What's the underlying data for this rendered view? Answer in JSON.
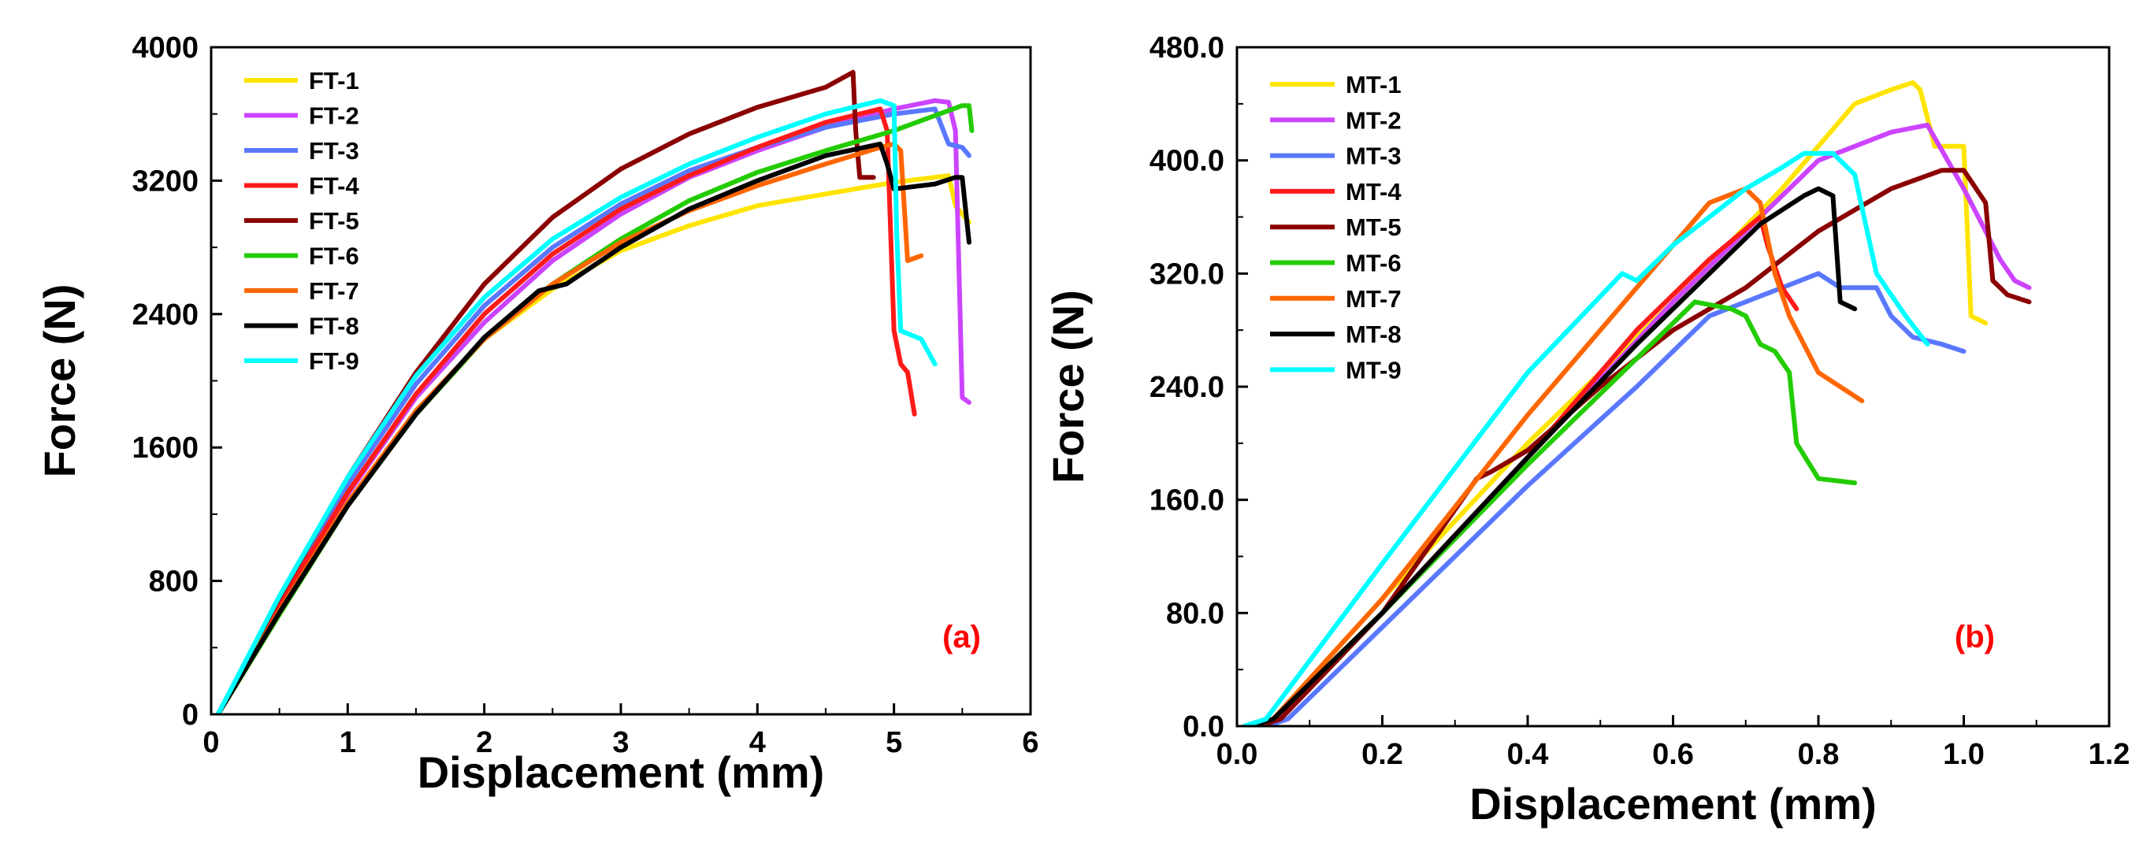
{
  "chart_data": [
    {
      "type": "line",
      "panel": "(a)",
      "panel_color": "#ff0000",
      "xlabel": "Displacement (mm)",
      "ylabel": "Force (N)",
      "xlim": [
        0,
        6
      ],
      "ylim": [
        0,
        4000
      ],
      "xticks": [
        "0",
        "1",
        "2",
        "3",
        "4",
        "5",
        "6"
      ],
      "yticks": [
        "0",
        "800",
        "1600",
        "2400",
        "3200",
        "4000"
      ],
      "legend_position": "top-left",
      "series": [
        {
          "name": "FT-1",
          "color": "#ffe400",
          "x": [
            0.05,
            0.5,
            1.0,
            1.5,
            2.0,
            2.5,
            3.0,
            3.5,
            4.0,
            4.5,
            5.0,
            5.4,
            5.45,
            5.55
          ],
          "y": [
            0,
            600,
            1250,
            1800,
            2250,
            2550,
            2780,
            2930,
            3050,
            3120,
            3190,
            3230,
            3050,
            2950
          ]
        },
        {
          "name": "FT-2",
          "color": "#cc44ff",
          "x": [
            0.05,
            0.5,
            1.0,
            1.5,
            2.0,
            2.5,
            3.0,
            3.5,
            4.0,
            4.5,
            5.0,
            5.3,
            5.4,
            5.45,
            5.5,
            5.55
          ],
          "y": [
            0,
            650,
            1320,
            1900,
            2350,
            2720,
            3000,
            3220,
            3380,
            3520,
            3630,
            3680,
            3670,
            3500,
            1900,
            1870
          ]
        },
        {
          "name": "FT-3",
          "color": "#5a78ff",
          "x": [
            0.05,
            0.5,
            1.0,
            1.5,
            2.0,
            2.5,
            3.0,
            3.5,
            4.0,
            4.5,
            5.0,
            5.3,
            5.4,
            5.5,
            5.55
          ],
          "y": [
            0,
            680,
            1380,
            1980,
            2450,
            2800,
            3060,
            3260,
            3400,
            3520,
            3600,
            3630,
            3420,
            3400,
            3350
          ]
        },
        {
          "name": "FT-4",
          "color": "#ff1a1a",
          "x": [
            0.05,
            0.5,
            1.0,
            1.5,
            2.0,
            2.5,
            3.0,
            3.5,
            4.0,
            4.5,
            4.9,
            4.95,
            5.0,
            5.05,
            5.1,
            5.15
          ],
          "y": [
            0,
            660,
            1330,
            1920,
            2400,
            2760,
            3030,
            3230,
            3400,
            3550,
            3630,
            3500,
            2300,
            2100,
            2050,
            1800
          ]
        },
        {
          "name": "FT-5",
          "color": "#8b0000",
          "x": [
            0.05,
            0.5,
            1.0,
            1.5,
            2.0,
            2.5,
            3.0,
            3.5,
            4.0,
            4.5,
            4.7,
            4.72,
            4.75,
            4.85
          ],
          "y": [
            0,
            700,
            1420,
            2050,
            2580,
            2980,
            3270,
            3480,
            3640,
            3760,
            3850,
            3500,
            3220,
            3220
          ]
        },
        {
          "name": "FT-6",
          "color": "#22cc00",
          "x": [
            0.05,
            0.5,
            1.0,
            1.5,
            2.0,
            2.5,
            3.0,
            3.5,
            4.0,
            4.5,
            5.0,
            5.5,
            5.55,
            5.57
          ],
          "y": [
            0,
            600,
            1250,
            1800,
            2250,
            2580,
            2850,
            3080,
            3250,
            3380,
            3500,
            3650,
            3650,
            3500
          ]
        },
        {
          "name": "FT-7",
          "color": "#ff6600",
          "x": [
            0.05,
            0.5,
            1.0,
            1.5,
            2.0,
            2.5,
            3.0,
            3.5,
            4.0,
            4.5,
            4.9,
            5.0,
            5.05,
            5.1,
            5.2
          ],
          "y": [
            0,
            620,
            1270,
            1820,
            2250,
            2580,
            2830,
            3020,
            3170,
            3300,
            3400,
            3420,
            3380,
            2720,
            2750
          ]
        },
        {
          "name": "FT-8",
          "color": "#000000",
          "x": [
            0.05,
            0.5,
            1.0,
            1.5,
            2.0,
            2.4,
            2.6,
            3.0,
            3.5,
            4.0,
            4.5,
            4.9,
            4.95,
            5.0,
            5.3,
            5.45,
            5.5,
            5.55
          ],
          "y": [
            0,
            610,
            1250,
            1800,
            2260,
            2540,
            2580,
            2800,
            3030,
            3200,
            3350,
            3420,
            3300,
            3150,
            3180,
            3220,
            3220,
            2830
          ]
        },
        {
          "name": "FT-9",
          "color": "#00ffff",
          "x": [
            0.05,
            0.5,
            1.0,
            1.5,
            2.0,
            2.5,
            3.0,
            3.5,
            4.0,
            4.5,
            4.9,
            5.0,
            5.02,
            5.05,
            5.2,
            5.3
          ],
          "y": [
            0,
            710,
            1420,
            2030,
            2500,
            2850,
            3100,
            3300,
            3460,
            3600,
            3680,
            3650,
            2900,
            2300,
            2250,
            2100
          ]
        }
      ]
    },
    {
      "type": "line",
      "panel": "(b)",
      "panel_color": "#ff0000",
      "xlabel": "Displacement (mm)",
      "ylabel": "Force (N)",
      "xlim": [
        0,
        1.2
      ],
      "ylim": [
        0,
        480
      ],
      "xticks": [
        "0.0",
        "0.2",
        "0.4",
        "0.6",
        "0.8",
        "1.0",
        "1.2"
      ],
      "yticks": [
        "0.0",
        "80.0",
        "160.0",
        "240.0",
        "320.0",
        "400.0",
        "480.0"
      ],
      "legend_position": "top-left",
      "series": [
        {
          "name": "MT-1",
          "color": "#ffe400",
          "x": [
            0.02,
            0.05,
            0.2,
            0.4,
            0.6,
            0.75,
            0.85,
            0.9,
            0.93,
            0.94,
            0.96,
            1.0,
            1.01,
            1.03
          ],
          "y": [
            0,
            5,
            90,
            200,
            300,
            380,
            440,
            450,
            455,
            450,
            410,
            410,
            290,
            285
          ]
        },
        {
          "name": "MT-2",
          "color": "#cc44ff",
          "x": [
            0.03,
            0.06,
            0.2,
            0.4,
            0.6,
            0.8,
            0.9,
            0.95,
            1.0,
            1.05,
            1.07,
            1.09
          ],
          "y": [
            0,
            5,
            80,
            190,
            300,
            400,
            420,
            425,
            380,
            330,
            315,
            310
          ]
        },
        {
          "name": "MT-3",
          "color": "#5a78ff",
          "x": [
            0.04,
            0.07,
            0.2,
            0.4,
            0.55,
            0.65,
            0.75,
            0.8,
            0.83,
            0.88,
            0.9,
            0.93,
            0.97,
            1.0
          ],
          "y": [
            0,
            5,
            70,
            170,
            240,
            290,
            310,
            320,
            310,
            310,
            290,
            275,
            270,
            265
          ]
        },
        {
          "name": "MT-4",
          "color": "#ff1a1a",
          "x": [
            0.02,
            0.05,
            0.2,
            0.4,
            0.55,
            0.65,
            0.72,
            0.73,
            0.75,
            0.77
          ],
          "y": [
            0,
            5,
            80,
            190,
            280,
            330,
            360,
            340,
            310,
            295
          ]
        },
        {
          "name": "MT-5",
          "color": "#8b0000",
          "x": [
            0.03,
            0.06,
            0.2,
            0.33,
            0.35,
            0.4,
            0.5,
            0.6,
            0.7,
            0.8,
            0.9,
            0.97,
            1.0,
            1.03,
            1.04,
            1.06,
            1.09
          ],
          "y": [
            0,
            5,
            80,
            175,
            180,
            195,
            240,
            280,
            310,
            350,
            380,
            393,
            393,
            370,
            315,
            305,
            300
          ]
        },
        {
          "name": "MT-6",
          "color": "#22cc00",
          "x": [
            0.02,
            0.05,
            0.2,
            0.4,
            0.55,
            0.63,
            0.68,
            0.7,
            0.72,
            0.74,
            0.76,
            0.77,
            0.8,
            0.85
          ],
          "y": [
            0,
            5,
            80,
            185,
            260,
            300,
            295,
            290,
            270,
            265,
            250,
            200,
            175,
            172
          ]
        },
        {
          "name": "MT-7",
          "color": "#ff6600",
          "x": [
            0.02,
            0.05,
            0.2,
            0.4,
            0.55,
            0.65,
            0.7,
            0.72,
            0.74,
            0.76,
            0.8,
            0.86
          ],
          "y": [
            0,
            5,
            90,
            220,
            310,
            370,
            380,
            370,
            320,
            290,
            250,
            230
          ]
        },
        {
          "name": "MT-8",
          "color": "#000000",
          "x": [
            0.02,
            0.05,
            0.2,
            0.4,
            0.55,
            0.65,
            0.72,
            0.78,
            0.8,
            0.82,
            0.83,
            0.85
          ],
          "y": [
            0,
            5,
            80,
            190,
            270,
            320,
            355,
            375,
            380,
            375,
            300,
            295
          ]
        },
        {
          "name": "MT-9",
          "color": "#00ffff",
          "x": [
            0.01,
            0.04,
            0.2,
            0.4,
            0.53,
            0.55,
            0.6,
            0.7,
            0.75,
            0.78,
            0.82,
            0.85,
            0.88,
            0.92,
            0.95
          ],
          "y": [
            0,
            5,
            115,
            250,
            320,
            315,
            340,
            380,
            395,
            405,
            405,
            390,
            320,
            290,
            270
          ]
        }
      ]
    }
  ]
}
